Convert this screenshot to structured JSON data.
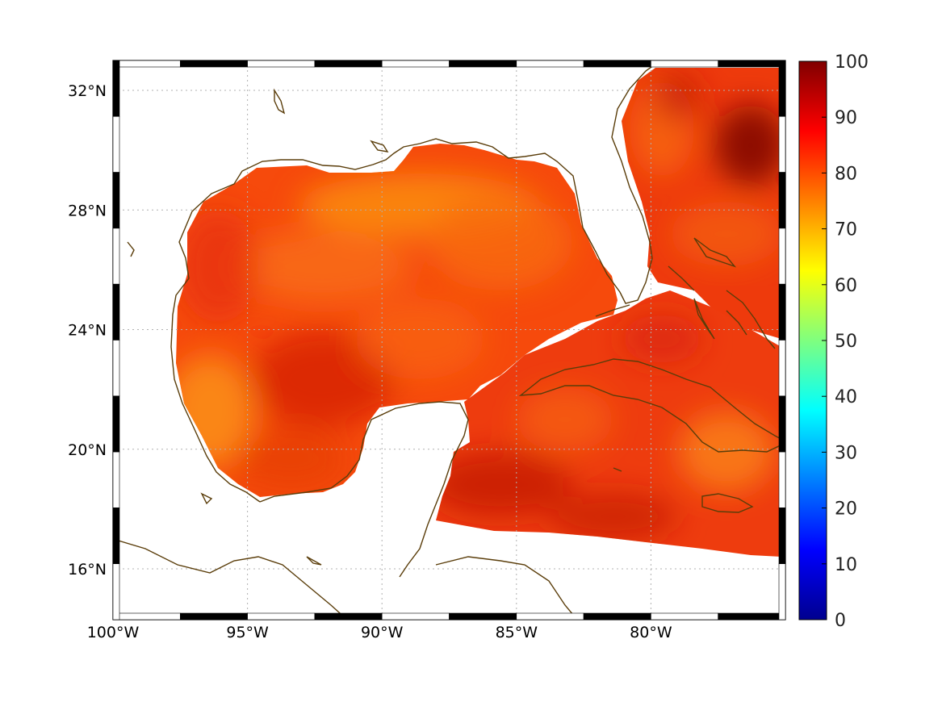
{
  "chart_data": {
    "type": "heatmap",
    "title": "",
    "xlabel": "",
    "ylabel": "",
    "x_range": [
      -100,
      -75
    ],
    "y_range": [
      14.3,
      33
    ],
    "x_ticks": [
      {
        "value": -100,
        "label": "100°W"
      },
      {
        "value": -95,
        "label": "95°W"
      },
      {
        "value": -90,
        "label": "90°W"
      },
      {
        "value": -85,
        "label": "85°W"
      },
      {
        "value": -80,
        "label": "80°W"
      }
    ],
    "y_ticks": [
      {
        "value": 16,
        "label": "16°N"
      },
      {
        "value": 20,
        "label": "20°N"
      },
      {
        "value": 24,
        "label": "24°N"
      },
      {
        "value": 28,
        "label": "28°N"
      },
      {
        "value": 32,
        "label": "32°N"
      }
    ],
    "grid": true,
    "colorbar": {
      "min": 0,
      "max": 100,
      "ticks": [
        "0",
        "10",
        "20",
        "30",
        "40",
        "50",
        "60",
        "70",
        "80",
        "90",
        "100"
      ],
      "colormap": "jet"
    },
    "value_summary": {
      "typical_range": [
        78,
        92
      ],
      "max_region": "Atlantic east of Florida/Georgia (~95-100)",
      "min_region": "north-central Gulf of Mexico (~72-75)"
    },
    "colors": {
      "coastline": "#5a3d0a",
      "grid": "#b0b0b0",
      "land": "#ffffff"
    }
  }
}
